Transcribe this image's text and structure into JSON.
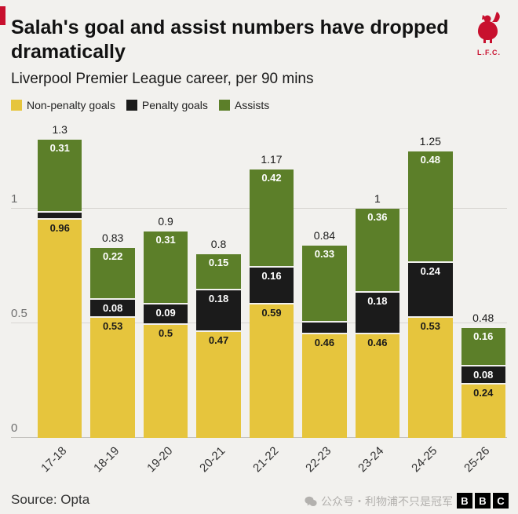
{
  "header": {
    "title": "Salah's goal and assist numbers have dropped dramatically",
    "subtitle": "Liverpool Premier League career, per 90 mins",
    "logo_text": "L.F.C.",
    "brand_red": "#c8102e"
  },
  "legend": [
    {
      "label": "Non-penalty goals",
      "color": "#e6c53d"
    },
    {
      "label": "Penalty goals",
      "color": "#1b1b1b"
    },
    {
      "label": "Assists",
      "color": "#5c7f29"
    }
  ],
  "chart_data": {
    "type": "bar",
    "stacked": true,
    "title": "Salah's goal and assist numbers have dropped dramatically",
    "subtitle": "Liverpool Premier League career, per 90 mins",
    "categories": [
      "17-18",
      "18-19",
      "19-20",
      "20-21",
      "21-22",
      "22-23",
      "23-24",
      "24-25",
      "25-26"
    ],
    "series": [
      {
        "key": "non-penalty-goals",
        "name": "Non-penalty goals",
        "color": "#e6c53d",
        "label_color": "#1a1a1a",
        "values": [
          0.96,
          0.53,
          0.5,
          0.47,
          0.59,
          0.46,
          0.46,
          0.53,
          0.24
        ]
      },
      {
        "key": "penalty-goals",
        "name": "Penalty goals",
        "color": "#1b1b1b",
        "label_color": "#ffffff",
        "values": [
          0.03,
          0.08,
          0.09,
          0.18,
          0.16,
          0.05,
          0.18,
          0.24,
          0.08
        ]
      },
      {
        "key": "assists",
        "name": "Assists",
        "color": "#5c7f29",
        "label_color": "#ffffff",
        "values": [
          0.31,
          0.22,
          0.31,
          0.15,
          0.42,
          0.33,
          0.36,
          0.48,
          0.16
        ]
      }
    ],
    "totals": [
      1.3,
      0.83,
      0.9,
      0.8,
      1.17,
      0.84,
      1,
      1.25,
      0.48
    ],
    "yticks": [
      0,
      0.5,
      1
    ],
    "ylim": [
      0,
      1.39
    ],
    "grid": true,
    "legend_position": "top"
  },
  "footer": {
    "source": "Source: Opta",
    "watermark": "公众号・利物浦不只是冠军",
    "bbc_letters": [
      "B",
      "B",
      "C"
    ]
  }
}
